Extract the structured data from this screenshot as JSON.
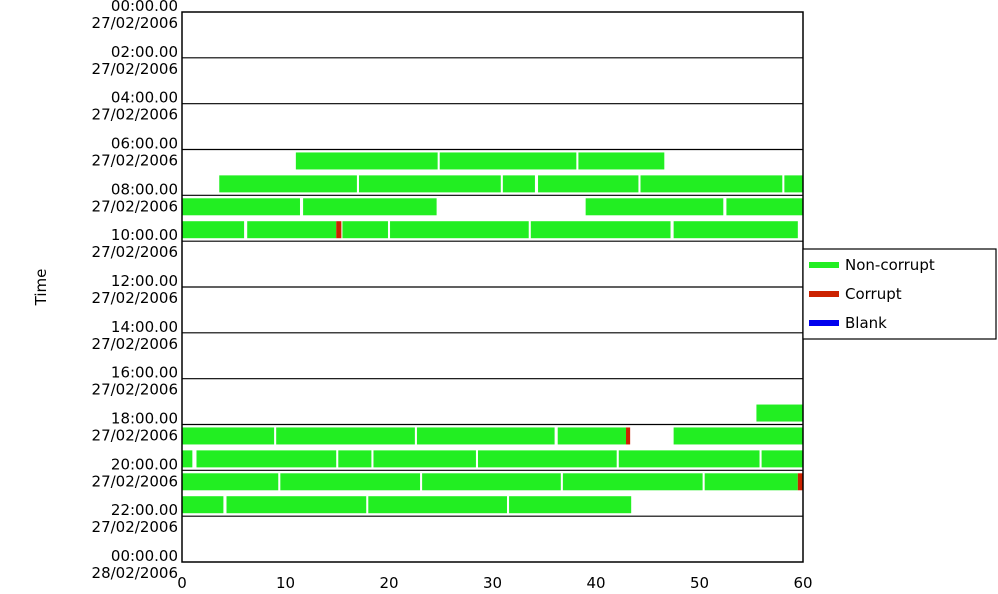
{
  "chart_data": {
    "type": "bar",
    "title": "",
    "xlabel": "",
    "ylabel": "Time",
    "xlim": [
      0,
      60
    ],
    "x_ticks": [
      "0",
      "10",
      "20",
      "30",
      "40",
      "50",
      "60"
    ],
    "y_tick_labels": [
      [
        "00:00.00",
        "27/02/2006"
      ],
      [
        "02:00.00",
        "27/02/2006"
      ],
      [
        "04:00.00",
        "27/02/2006"
      ],
      [
        "06:00.00",
        "27/02/2006"
      ],
      [
        "08:00.00",
        "27/02/2006"
      ],
      [
        "10:00.00",
        "27/02/2006"
      ],
      [
        "12:00.00",
        "27/02/2006"
      ],
      [
        "14:00.00",
        "27/02/2006"
      ],
      [
        "16:00.00",
        "27/02/2006"
      ],
      [
        "18:00.00",
        "27/02/2006"
      ],
      [
        "20:00.00",
        "27/02/2006"
      ],
      [
        "22:00.00",
        "27/02/2006"
      ],
      [
        "00:00.00",
        "28/02/2006"
      ]
    ],
    "grid": true,
    "legend_position": "right",
    "series": [
      {
        "name": "Non-corrupt",
        "color": "#22ee22"
      },
      {
        "name": "Corrupt",
        "color": "#cc2200"
      },
      {
        "name": "Blank",
        "color": "#0000ee"
      }
    ],
    "rows": [
      {
        "hour": 6.5,
        "segments": [
          {
            "start": 11,
            "end": 24.7,
            "status": "Non-corrupt"
          },
          {
            "start": 24.9,
            "end": 38.1,
            "status": "Non-corrupt"
          },
          {
            "start": 38.3,
            "end": 46.6,
            "status": "Non-corrupt"
          }
        ]
      },
      {
        "hour": 7.5,
        "segments": [
          {
            "start": 3.6,
            "end": 16.9,
            "status": "Non-corrupt"
          },
          {
            "start": 17.1,
            "end": 30.8,
            "status": "Non-corrupt"
          },
          {
            "start": 31,
            "end": 34.1,
            "status": "Non-corrupt"
          },
          {
            "start": 34.4,
            "end": 44.1,
            "status": "Non-corrupt"
          },
          {
            "start": 44.3,
            "end": 58,
            "status": "Non-corrupt"
          },
          {
            "start": 58.2,
            "end": 60,
            "status": "Non-corrupt"
          }
        ]
      },
      {
        "hour": 8.5,
        "segments": [
          {
            "start": 0,
            "end": 11.4,
            "status": "Non-corrupt"
          },
          {
            "start": 11.7,
            "end": 24.6,
            "status": "Non-corrupt"
          },
          {
            "start": 39,
            "end": 52.3,
            "status": "Non-corrupt"
          },
          {
            "start": 52.6,
            "end": 60,
            "status": "Non-corrupt"
          }
        ]
      },
      {
        "hour": 9.5,
        "segments": [
          {
            "start": 0,
            "end": 6,
            "status": "Non-corrupt"
          },
          {
            "start": 6.3,
            "end": 14.9,
            "status": "Non-corrupt"
          },
          {
            "start": 14.9,
            "end": 15.4,
            "status": "Corrupt"
          },
          {
            "start": 15.5,
            "end": 19.9,
            "status": "Non-corrupt"
          },
          {
            "start": 20.1,
            "end": 33.5,
            "status": "Non-corrupt"
          },
          {
            "start": 33.7,
            "end": 47.2,
            "status": "Non-corrupt"
          },
          {
            "start": 47.5,
            "end": 59.5,
            "status": "Non-corrupt"
          }
        ]
      },
      {
        "hour": 17.5,
        "segments": [
          {
            "start": 55.5,
            "end": 60,
            "status": "Non-corrupt"
          }
        ]
      },
      {
        "hour": 18.5,
        "segments": [
          {
            "start": 0,
            "end": 8.9,
            "status": "Non-corrupt"
          },
          {
            "start": 9.1,
            "end": 22.5,
            "status": "Non-corrupt"
          },
          {
            "start": 22.7,
            "end": 36,
            "status": "Non-corrupt"
          },
          {
            "start": 36.3,
            "end": 42.9,
            "status": "Non-corrupt"
          },
          {
            "start": 42.9,
            "end": 43.3,
            "status": "Corrupt"
          },
          {
            "start": 47.5,
            "end": 60,
            "status": "Non-corrupt"
          }
        ]
      },
      {
        "hour": 19.5,
        "segments": [
          {
            "start": 0,
            "end": 1,
            "status": "Non-corrupt"
          },
          {
            "start": 1.4,
            "end": 14.9,
            "status": "Non-corrupt"
          },
          {
            "start": 15.1,
            "end": 18.3,
            "status": "Non-corrupt"
          },
          {
            "start": 18.5,
            "end": 28.4,
            "status": "Non-corrupt"
          },
          {
            "start": 28.6,
            "end": 42,
            "status": "Non-corrupt"
          },
          {
            "start": 42.2,
            "end": 55.8,
            "status": "Non-corrupt"
          },
          {
            "start": 56,
            "end": 60,
            "status": "Non-corrupt"
          }
        ]
      },
      {
        "hour": 20.5,
        "segments": [
          {
            "start": 0,
            "end": 9.3,
            "status": "Non-corrupt"
          },
          {
            "start": 9.5,
            "end": 23,
            "status": "Non-corrupt"
          },
          {
            "start": 23.2,
            "end": 36.6,
            "status": "Non-corrupt"
          },
          {
            "start": 36.8,
            "end": 50.3,
            "status": "Non-corrupt"
          },
          {
            "start": 50.5,
            "end": 59.5,
            "status": "Non-corrupt"
          },
          {
            "start": 59.5,
            "end": 60,
            "status": "Corrupt"
          }
        ]
      },
      {
        "hour": 21.5,
        "segments": [
          {
            "start": 0,
            "end": 4,
            "status": "Non-corrupt"
          },
          {
            "start": 4.3,
            "end": 17.8,
            "status": "Non-corrupt"
          },
          {
            "start": 18,
            "end": 31.4,
            "status": "Non-corrupt"
          },
          {
            "start": 31.6,
            "end": 43.4,
            "status": "Non-corrupt"
          }
        ]
      }
    ]
  }
}
